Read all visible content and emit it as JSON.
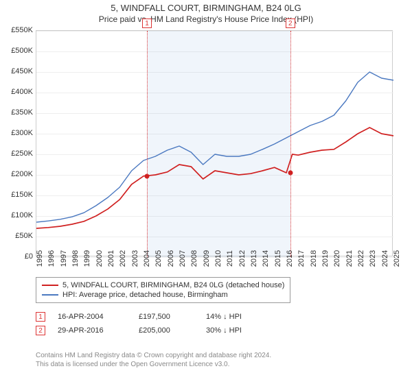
{
  "title": "5, WINDFALL COURT, BIRMINGHAM, B24 0LG",
  "subtitle": "Price paid vs. HM Land Registry's House Price Index (HPI)",
  "colors": {
    "property_line": "#d02020",
    "hpi_line": "#4a78c0",
    "marker_border": "#d33",
    "grid": "#eee",
    "axis_text": "#333",
    "shade": "rgba(70,130,200,0.08)"
  },
  "axes": {
    "y": {
      "min": 0,
      "max": 550000,
      "step": 50000,
      "prefix": "£",
      "labels": [
        "£0",
        "£50K",
        "£100K",
        "£150K",
        "£200K",
        "£250K",
        "£300K",
        "£350K",
        "£400K",
        "£450K",
        "£500K",
        "£550K"
      ]
    },
    "x": {
      "min": 1995,
      "max": 2025,
      "step": 1,
      "labels": [
        "1995",
        "1996",
        "1997",
        "1998",
        "1999",
        "2000",
        "2001",
        "2002",
        "2003",
        "2004",
        "2005",
        "2006",
        "2007",
        "2008",
        "2009",
        "2010",
        "2011",
        "2012",
        "2013",
        "2014",
        "2015",
        "2016",
        "2017",
        "2018",
        "2019",
        "2020",
        "2021",
        "2022",
        "2023",
        "2024",
        "2025"
      ]
    }
  },
  "shade_range": {
    "start_year": 2004.29,
    "end_year": 2016.33
  },
  "series": {
    "property": [
      {
        "year": 1995,
        "value": 70000
      },
      {
        "year": 1996,
        "value": 72000
      },
      {
        "year": 1997,
        "value": 75000
      },
      {
        "year": 1998,
        "value": 80000
      },
      {
        "year": 1999,
        "value": 87000
      },
      {
        "year": 2000,
        "value": 100000
      },
      {
        "year": 2001,
        "value": 117000
      },
      {
        "year": 2002,
        "value": 140000
      },
      {
        "year": 2003,
        "value": 177000
      },
      {
        "year": 2004,
        "value": 197000
      },
      {
        "year": 2005,
        "value": 200000
      },
      {
        "year": 2006,
        "value": 207000
      },
      {
        "year": 2007,
        "value": 225000
      },
      {
        "year": 2008,
        "value": 220000
      },
      {
        "year": 2009,
        "value": 190000
      },
      {
        "year": 2010,
        "value": 210000
      },
      {
        "year": 2011,
        "value": 205000
      },
      {
        "year": 2012,
        "value": 200000
      },
      {
        "year": 2013,
        "value": 203000
      },
      {
        "year": 2014,
        "value": 210000
      },
      {
        "year": 2015,
        "value": 218000
      },
      {
        "year": 2016,
        "value": 205000
      },
      {
        "year": 2016.5,
        "value": 250000
      },
      {
        "year": 2017,
        "value": 248000
      },
      {
        "year": 2018,
        "value": 255000
      },
      {
        "year": 2019,
        "value": 260000
      },
      {
        "year": 2020,
        "value": 262000
      },
      {
        "year": 2021,
        "value": 280000
      },
      {
        "year": 2022,
        "value": 300000
      },
      {
        "year": 2023,
        "value": 315000
      },
      {
        "year": 2024,
        "value": 300000
      },
      {
        "year": 2025,
        "value": 295000
      }
    ],
    "hpi": [
      {
        "year": 1995,
        "value": 85000
      },
      {
        "year": 1996,
        "value": 88000
      },
      {
        "year": 1997,
        "value": 92000
      },
      {
        "year": 1998,
        "value": 98000
      },
      {
        "year": 1999,
        "value": 108000
      },
      {
        "year": 2000,
        "value": 125000
      },
      {
        "year": 2001,
        "value": 145000
      },
      {
        "year": 2002,
        "value": 170000
      },
      {
        "year": 2003,
        "value": 210000
      },
      {
        "year": 2004,
        "value": 235000
      },
      {
        "year": 2005,
        "value": 245000
      },
      {
        "year": 2006,
        "value": 260000
      },
      {
        "year": 2007,
        "value": 270000
      },
      {
        "year": 2008,
        "value": 255000
      },
      {
        "year": 2009,
        "value": 225000
      },
      {
        "year": 2010,
        "value": 250000
      },
      {
        "year": 2011,
        "value": 245000
      },
      {
        "year": 2012,
        "value": 245000
      },
      {
        "year": 2013,
        "value": 250000
      },
      {
        "year": 2014,
        "value": 262000
      },
      {
        "year": 2015,
        "value": 275000
      },
      {
        "year": 2016,
        "value": 290000
      },
      {
        "year": 2017,
        "value": 305000
      },
      {
        "year": 2018,
        "value": 320000
      },
      {
        "year": 2019,
        "value": 330000
      },
      {
        "year": 2020,
        "value": 345000
      },
      {
        "year": 2021,
        "value": 380000
      },
      {
        "year": 2022,
        "value": 425000
      },
      {
        "year": 2023,
        "value": 450000
      },
      {
        "year": 2024,
        "value": 435000
      },
      {
        "year": 2025,
        "value": 430000
      }
    ]
  },
  "markers": [
    {
      "id": "1",
      "year": 2004.29,
      "value": 197500,
      "date": "16-APR-2004",
      "price": "£197,500",
      "delta": "14% ↓ HPI"
    },
    {
      "id": "2",
      "year": 2016.33,
      "value": 205000,
      "date": "29-APR-2016",
      "price": "£205,000",
      "delta": "30% ↓ HPI"
    }
  ],
  "legend": {
    "property": "5, WINDFALL COURT, BIRMINGHAM, B24 0LG (detached house)",
    "hpi": "HPI: Average price, detached house, Birmingham"
  },
  "footer": {
    "line1": "Contains HM Land Registry data © Crown copyright and database right 2024.",
    "line2": "This data is licensed under the Open Government Licence v3.0."
  }
}
